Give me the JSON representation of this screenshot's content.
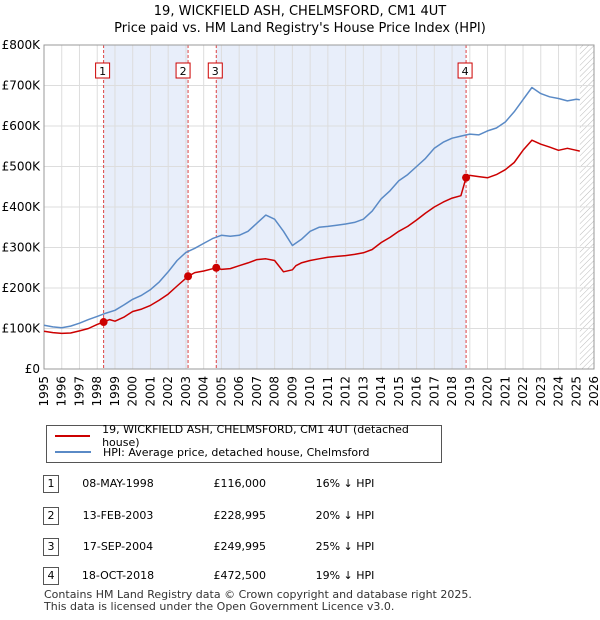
{
  "chart_data": {
    "type": "line",
    "title": "19, WICKFIELD ASH, CHELMSFORD, CM1 4UT",
    "subtitle": "Price paid vs. HM Land Registry's House Price Index (HPI)",
    "xlim": [
      1995,
      2026
    ],
    "ylim": [
      0,
      800000
    ],
    "x_ticks": [
      1995,
      1996,
      1997,
      1998,
      1999,
      2000,
      2001,
      2002,
      2003,
      2004,
      2005,
      2006,
      2007,
      2008,
      2009,
      2010,
      2011,
      2012,
      2013,
      2014,
      2015,
      2016,
      2017,
      2018,
      2019,
      2020,
      2021,
      2022,
      2023,
      2024,
      2025,
      2026
    ],
    "y_ticks": [
      {
        "value": 0,
        "label": "£0"
      },
      {
        "value": 100000,
        "label": "£100K"
      },
      {
        "value": 200000,
        "label": "£200K"
      },
      {
        "value": 300000,
        "label": "£300K"
      },
      {
        "value": 400000,
        "label": "£400K"
      },
      {
        "value": 500000,
        "label": "£500K"
      },
      {
        "value": 600000,
        "label": "£600K"
      },
      {
        "value": 700000,
        "label": "£700K"
      },
      {
        "value": 800000,
        "label": "£800K"
      }
    ],
    "shaded_spans": [
      [
        1998.36,
        2003.12
      ],
      [
        2004.71,
        2018.79
      ]
    ],
    "forecast_from": 2025.2,
    "series": [
      {
        "name": "19, WICKFIELD ASH, CHELMSFORD, CM1 4UT (detached house)",
        "color": "#cc0000",
        "x": [
          1995,
          1995.5,
          1996,
          1996.5,
          1997,
          1997.5,
          1998,
          1998.36,
          1998.7,
          1999,
          1999.5,
          2000,
          2000.5,
          2001,
          2001.5,
          2002,
          2002.5,
          2003.12,
          2003.5,
          2004,
          2004.71,
          2005,
          2005.5,
          2006,
          2006.5,
          2007,
          2007.5,
          2008,
          2008.5,
          2009,
          2009.2,
          2009.5,
          2010,
          2010.5,
          2011,
          2011.5,
          2012,
          2012.5,
          2013,
          2013.5,
          2014,
          2014.5,
          2015,
          2015.5,
          2016,
          2016.5,
          2017,
          2017.5,
          2018,
          2018.5,
          2018.79,
          2019,
          2019.5,
          2020,
          2020.5,
          2021,
          2021.5,
          2022,
          2022.5,
          2023,
          2023.5,
          2024,
          2024.5,
          2025,
          2025.2
        ],
        "values": [
          93000,
          90000,
          88000,
          89000,
          94000,
          100000,
          110000,
          116000,
          122000,
          118000,
          128000,
          142000,
          148000,
          157000,
          170000,
          185000,
          205000,
          228995,
          238000,
          242000,
          249995,
          246000,
          248000,
          255000,
          262000,
          270000,
          272000,
          268000,
          240000,
          245000,
          255000,
          262000,
          268000,
          272000,
          276000,
          278000,
          280000,
          283000,
          287000,
          295000,
          312000,
          325000,
          340000,
          352000,
          368000,
          385000,
          400000,
          412000,
          422000,
          428000,
          472500,
          478000,
          475000,
          472000,
          480000,
          492000,
          510000,
          540000,
          565000,
          555000,
          548000,
          540000,
          545000,
          540000,
          538000
        ]
      },
      {
        "name": "HPI: Average price, detached house, Chelmsford",
        "color": "#5a8ac6",
        "x": [
          1995,
          1995.5,
          1996,
          1996.5,
          1997,
          1997.5,
          1998,
          1998.5,
          1999,
          1999.5,
          2000,
          2000.5,
          2001,
          2001.5,
          2002,
          2002.5,
          2003,
          2003.5,
          2004,
          2004.5,
          2005,
          2005.5,
          2006,
          2006.5,
          2007,
          2007.5,
          2008,
          2008.5,
          2009,
          2009.5,
          2010,
          2010.5,
          2011,
          2011.5,
          2012,
          2012.5,
          2013,
          2013.5,
          2014,
          2014.5,
          2015,
          2015.5,
          2016,
          2016.5,
          2017,
          2017.5,
          2018,
          2018.5,
          2019,
          2019.5,
          2020,
          2020.5,
          2021,
          2021.5,
          2022,
          2022.5,
          2023,
          2023.5,
          2024,
          2024.5,
          2025,
          2025.2
        ],
        "values": [
          108000,
          104000,
          102000,
          106000,
          113000,
          122000,
          130000,
          138000,
          145000,
          158000,
          172000,
          182000,
          196000,
          215000,
          240000,
          268000,
          288000,
          298000,
          310000,
          322000,
          330000,
          328000,
          330000,
          340000,
          360000,
          380000,
          370000,
          340000,
          305000,
          320000,
          340000,
          350000,
          352000,
          355000,
          358000,
          362000,
          370000,
          390000,
          420000,
          440000,
          465000,
          480000,
          500000,
          520000,
          545000,
          560000,
          570000,
          575000,
          580000,
          578000,
          588000,
          595000,
          610000,
          635000,
          665000,
          695000,
          680000,
          672000,
          668000,
          662000,
          666000,
          665000
        ]
      }
    ],
    "sale_points": [
      {
        "label": "1",
        "x": 1998.36,
        "value": 116000
      },
      {
        "label": "2",
        "x": 2003.12,
        "value": 228995
      },
      {
        "label": "3",
        "x": 2004.71,
        "value": 249995
      },
      {
        "label": "4",
        "x": 2018.79,
        "value": 472500
      }
    ]
  },
  "legend": {
    "house_label": "19, WICKFIELD ASH, CHELMSFORD, CM1 4UT (detached house)",
    "hpi_label": "HPI: Average price, detached house, Chelmsford",
    "house_color": "#cc0000",
    "hpi_color": "#5a8ac6"
  },
  "transactions": [
    {
      "num": "1",
      "date": "08-MAY-1998",
      "price": "£116,000",
      "hpi": "16% ↓ HPI"
    },
    {
      "num": "2",
      "date": "13-FEB-2003",
      "price": "£228,995",
      "hpi": "20% ↓ HPI"
    },
    {
      "num": "3",
      "date": "17-SEP-2004",
      "price": "£249,995",
      "hpi": "25% ↓ HPI"
    },
    {
      "num": "4",
      "date": "18-OCT-2018",
      "price": "£472,500",
      "hpi": "19% ↓ HPI"
    }
  ],
  "footer": {
    "line1": "Contains HM Land Registry data © Crown copyright and database right 2025.",
    "line2": "This data is licensed under the Open Government Licence v3.0."
  }
}
